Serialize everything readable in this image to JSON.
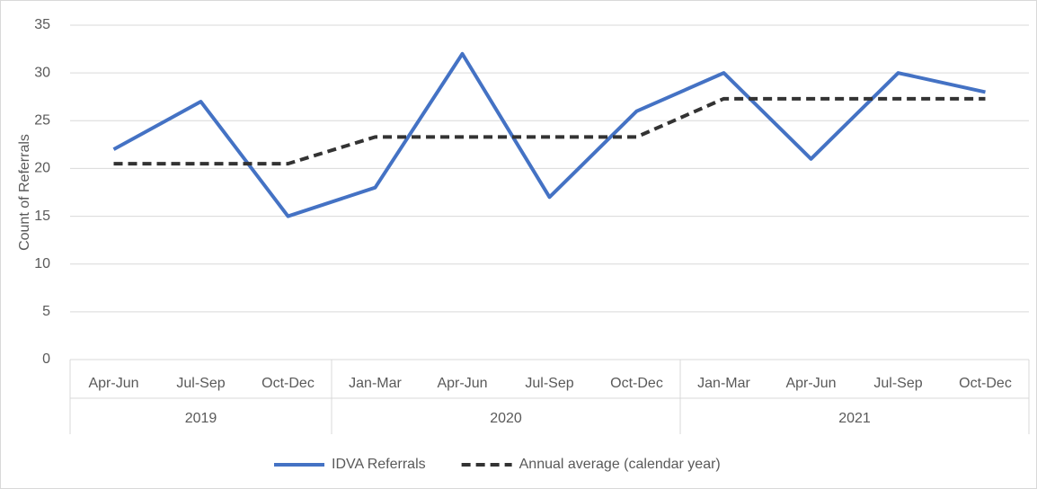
{
  "chart_data": {
    "type": "line",
    "y_label": "Count of Referrals",
    "groups": [
      {
        "name": "2019",
        "categories": [
          "Apr-Jun",
          "Jul-Sep",
          "Oct-Dec"
        ]
      },
      {
        "name": "2020",
        "categories": [
          "Jan-Mar",
          "Apr-Jun",
          "Jul-Sep",
          "Oct-Dec"
        ]
      },
      {
        "name": "2021",
        "categories": [
          "Jan-Mar",
          "Apr-Jun",
          "Jul-Sep",
          "Oct-Dec"
        ]
      }
    ],
    "series": [
      {
        "name": "IDVA Referrals",
        "color": "#4472c4",
        "dashed": false,
        "values": [
          22,
          27,
          15,
          18,
          32,
          17,
          26,
          30,
          21,
          30,
          28
        ]
      },
      {
        "name": "Annual average (calendar year)",
        "color": "#333333",
        "dashed": true,
        "values": [
          20.5,
          20.5,
          20.5,
          23.3,
          23.3,
          23.3,
          23.3,
          27.3,
          27.3,
          27.3,
          27.3
        ]
      }
    ],
    "ylim": [
      0,
      35
    ],
    "yticks": [
      0,
      5,
      10,
      15,
      20,
      25,
      30,
      35
    ],
    "grid": true,
    "legend": "bottom"
  }
}
